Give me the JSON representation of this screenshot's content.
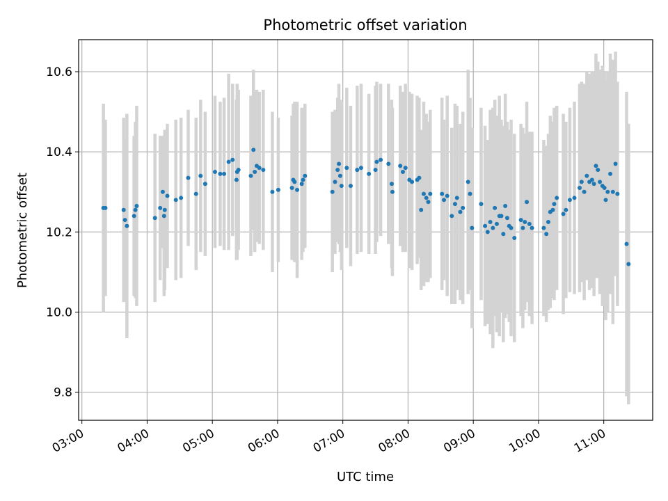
{
  "chart_data": {
    "type": "scatter",
    "title": "Photometric offset variation",
    "xlabel": "UTC time",
    "ylabel": "Photometric offset",
    "x_unit": "UTC hours",
    "xlim": [
      2.95,
      11.75
    ],
    "ylim": [
      9.73,
      10.68
    ],
    "x_ticks": [
      3,
      4,
      5,
      6,
      7,
      8,
      9,
      10,
      11
    ],
    "x_tick_labels": [
      "03:00",
      "04:00",
      "05:00",
      "06:00",
      "07:00",
      "08:00",
      "09:00",
      "10:00",
      "11:00"
    ],
    "y_ticks": [
      9.8,
      10.0,
      10.2,
      10.4,
      10.6
    ],
    "y_tick_labels": [
      "9.8",
      "10.0",
      "10.2",
      "10.4",
      "10.6"
    ],
    "grid": true,
    "point_color": "#1f77b4",
    "errorbar_color": "#d3d3d3",
    "points": [
      [
        3.33,
        10.26,
        0.26
      ],
      [
        3.36,
        10.26,
        0.22
      ],
      [
        3.64,
        10.255,
        0.23
      ],
      [
        3.66,
        10.23,
        0.2
      ],
      [
        3.69,
        10.215,
        0.28
      ],
      [
        3.8,
        10.24,
        0.2
      ],
      [
        3.82,
        10.255,
        0.22
      ],
      [
        3.84,
        10.265,
        0.25
      ],
      [
        4.12,
        10.235,
        0.21
      ],
      [
        4.2,
        10.26,
        0.18
      ],
      [
        4.24,
        10.3,
        0.14
      ],
      [
        4.26,
        10.24,
        0.2
      ],
      [
        4.27,
        10.255,
        0.2
      ],
      [
        4.31,
        10.29,
        0.18
      ],
      [
        4.44,
        10.28,
        0.2
      ],
      [
        4.52,
        10.285,
        0.2
      ],
      [
        4.63,
        10.335,
        0.17
      ],
      [
        4.75,
        10.295,
        0.19
      ],
      [
        4.82,
        10.34,
        0.19
      ],
      [
        4.89,
        10.32,
        0.18
      ],
      [
        5.04,
        10.35,
        0.19
      ],
      [
        5.12,
        10.345,
        0.18
      ],
      [
        5.18,
        10.345,
        0.19
      ],
      [
        5.25,
        10.375,
        0.22
      ],
      [
        5.31,
        10.38,
        0.19
      ],
      [
        5.37,
        10.33,
        0.2
      ],
      [
        5.38,
        10.35,
        0.22
      ],
      [
        5.4,
        10.355,
        0.2
      ],
      [
        5.59,
        10.34,
        0.2
      ],
      [
        5.63,
        10.405,
        0.2
      ],
      [
        5.65,
        10.35,
        0.2
      ],
      [
        5.68,
        10.365,
        0.19
      ],
      [
        5.72,
        10.36,
        0.19
      ],
      [
        5.78,
        10.355,
        0.2
      ],
      [
        5.92,
        10.3,
        0.2
      ],
      [
        6.01,
        10.305,
        0.18
      ],
      [
        6.22,
        10.31,
        0.18
      ],
      [
        6.24,
        10.33,
        0.19
      ],
      [
        6.26,
        10.325,
        0.2
      ],
      [
        6.3,
        10.305,
        0.22
      ],
      [
        6.37,
        10.32,
        0.19
      ],
      [
        6.39,
        10.33,
        0.18
      ],
      [
        6.42,
        10.34,
        0.18
      ],
      [
        6.84,
        10.3,
        0.2
      ],
      [
        6.88,
        10.325,
        0.18
      ],
      [
        6.92,
        10.355,
        0.18
      ],
      [
        6.94,
        10.37,
        0.2
      ],
      [
        6.96,
        10.34,
        0.19
      ],
      [
        6.98,
        10.315,
        0.21
      ],
      [
        7.06,
        10.36,
        0.2
      ],
      [
        7.12,
        10.315,
        0.2
      ],
      [
        7.22,
        10.355,
        0.21
      ],
      [
        7.28,
        10.36,
        0.21
      ],
      [
        7.4,
        10.345,
        0.2
      ],
      [
        7.5,
        10.355,
        0.21
      ],
      [
        7.52,
        10.375,
        0.2
      ],
      [
        7.58,
        10.38,
        0.19
      ],
      [
        7.7,
        10.37,
        0.2
      ],
      [
        7.75,
        10.32,
        0.21
      ],
      [
        7.76,
        10.3,
        0.21
      ],
      [
        7.88,
        10.365,
        0.2
      ],
      [
        7.92,
        10.35,
        0.2
      ],
      [
        7.96,
        10.36,
        0.21
      ],
      [
        8.02,
        10.33,
        0.22
      ],
      [
        8.06,
        10.325,
        0.22
      ],
      [
        8.14,
        10.33,
        0.21
      ],
      [
        8.17,
        10.335,
        0.2
      ],
      [
        8.2,
        10.255,
        0.2
      ],
      [
        8.24,
        10.295,
        0.23
      ],
      [
        8.28,
        10.285,
        0.21
      ],
      [
        8.31,
        10.275,
        0.2
      ],
      [
        8.34,
        10.295,
        0.21
      ],
      [
        8.52,
        10.295,
        0.24
      ],
      [
        8.55,
        10.28,
        0.2
      ],
      [
        8.6,
        10.29,
        0.25
      ],
      [
        8.67,
        10.24,
        0.22
      ],
      [
        8.72,
        10.27,
        0.25
      ],
      [
        8.75,
        10.285,
        0.23
      ],
      [
        8.8,
        10.25,
        0.22
      ],
      [
        8.84,
        10.26,
        0.24
      ],
      [
        8.92,
        10.325,
        0.28
      ],
      [
        8.95,
        10.295,
        0.24
      ],
      [
        8.98,
        10.21,
        0.25
      ],
      [
        9.12,
        10.27,
        0.24
      ],
      [
        9.18,
        10.215,
        0.25
      ],
      [
        9.22,
        10.2,
        0.23
      ],
      [
        9.26,
        10.225,
        0.28
      ],
      [
        9.3,
        10.21,
        0.3
      ],
      [
        9.33,
        10.26,
        0.27
      ],
      [
        9.36,
        10.22,
        0.27
      ],
      [
        9.4,
        10.24,
        0.3
      ],
      [
        9.43,
        10.24,
        0.24
      ],
      [
        9.46,
        10.195,
        0.27
      ],
      [
        9.49,
        10.265,
        0.28
      ],
      [
        9.52,
        10.235,
        0.24
      ],
      [
        9.55,
        10.215,
        0.24
      ],
      [
        9.58,
        10.21,
        0.27
      ],
      [
        9.63,
        10.185,
        0.26
      ],
      [
        9.73,
        10.23,
        0.24
      ],
      [
        9.76,
        10.21,
        0.25
      ],
      [
        9.79,
        10.225,
        0.22
      ],
      [
        9.82,
        10.275,
        0.25
      ],
      [
        9.86,
        10.22,
        0.23
      ],
      [
        9.9,
        10.21,
        0.24
      ],
      [
        10.08,
        10.21,
        0.22
      ],
      [
        10.12,
        10.195,
        0.22
      ],
      [
        10.15,
        10.225,
        0.22
      ],
      [
        10.18,
        10.25,
        0.24
      ],
      [
        10.22,
        10.255,
        0.22
      ],
      [
        10.24,
        10.27,
        0.24
      ],
      [
        10.28,
        10.285,
        0.23
      ],
      [
        10.38,
        10.245,
        0.25
      ],
      [
        10.42,
        10.255,
        0.22
      ],
      [
        10.48,
        10.28,
        0.23
      ],
      [
        10.55,
        10.285,
        0.24
      ],
      [
        10.63,
        10.31,
        0.26
      ],
      [
        10.66,
        10.325,
        0.25
      ],
      [
        10.7,
        10.3,
        0.27
      ],
      [
        10.74,
        10.34,
        0.26
      ],
      [
        10.78,
        10.325,
        0.27
      ],
      [
        10.82,
        10.33,
        0.27
      ],
      [
        10.85,
        10.32,
        0.28
      ],
      [
        10.88,
        10.365,
        0.28
      ],
      [
        10.91,
        10.355,
        0.27
      ],
      [
        10.94,
        10.325,
        0.28
      ],
      [
        10.98,
        10.315,
        0.3
      ],
      [
        11.01,
        10.31,
        0.29
      ],
      [
        11.03,
        10.28,
        0.3
      ],
      [
        11.06,
        10.3,
        0.3
      ],
      [
        11.1,
        10.345,
        0.3
      ],
      [
        11.14,
        10.3,
        0.33
      ],
      [
        11.18,
        10.37,
        0.28
      ],
      [
        11.21,
        10.295,
        0.28
      ],
      [
        11.35,
        10.17,
        0.38
      ],
      [
        11.38,
        10.12,
        0.35
      ]
    ]
  }
}
